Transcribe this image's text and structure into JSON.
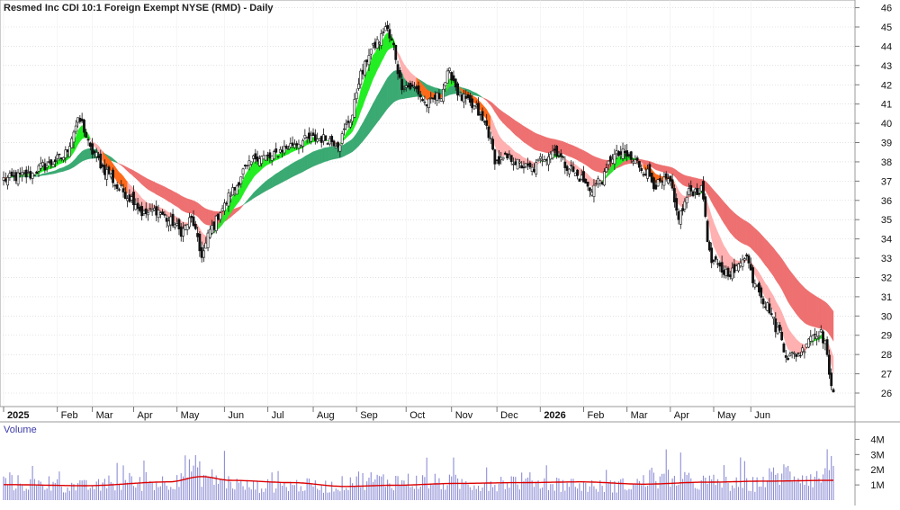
{
  "chart_data": {
    "type": "candlestick",
    "title": "Resmed Inc CDI 10:1 Foreign Exempt NYSE (RMD) - Daily",
    "volume_label": "Volume",
    "ylim": [
      25.3,
      46.4
    ],
    "y_ticks": [
      26,
      27,
      28,
      29,
      30,
      31,
      32,
      33,
      34,
      35,
      36,
      37,
      38,
      39,
      40,
      41,
      42,
      43,
      44,
      45,
      46
    ],
    "x_labels": [
      "2025",
      "Feb",
      "Mar",
      "Apr",
      "May",
      "Jun",
      "Jul",
      "Aug",
      "Sep",
      "Oct",
      "Nov",
      "Dec",
      "2026",
      "Feb",
      "Mar",
      "Apr",
      "May",
      "Jun"
    ],
    "volume_ticks": [
      "4M",
      "3M",
      "2M",
      "1M"
    ],
    "volume_max": 4500000,
    "close_anchors": [
      [
        0,
        37.1
      ],
      [
        12,
        37.3
      ],
      [
        20,
        37.8
      ],
      [
        28,
        38.2
      ],
      [
        37,
        40.1
      ],
      [
        43,
        38.5
      ],
      [
        50,
        37.5
      ],
      [
        56,
        36.6
      ],
      [
        62,
        36.1
      ],
      [
        68,
        35.3
      ],
      [
        74,
        35.5
      ],
      [
        81,
        34.9
      ],
      [
        86,
        34.4
      ],
      [
        91,
        35.0
      ],
      [
        96,
        33.2
      ],
      [
        101,
        34.6
      ],
      [
        106,
        35.6
      ],
      [
        111,
        36.5
      ],
      [
        117,
        37.6
      ],
      [
        123,
        38.3
      ],
      [
        129,
        38.2
      ],
      [
        136,
        38.7
      ],
      [
        142,
        39.0
      ],
      [
        149,
        39.2
      ],
      [
        156,
        39.2
      ],
      [
        162,
        39.0
      ],
      [
        168,
        40.2
      ],
      [
        173,
        42.5
      ],
      [
        178,
        43.8
      ],
      [
        182,
        44.3
      ],
      [
        185,
        45.0
      ],
      [
        188,
        44.2
      ],
      [
        193,
        42.0
      ],
      [
        199,
        41.8
      ],
      [
        205,
        41.0
      ],
      [
        211,
        41.4
      ],
      [
        216,
        42.6
      ],
      [
        222,
        41.3
      ],
      [
        228,
        40.8
      ],
      [
        233,
        40.0
      ],
      [
        239,
        38.0
      ],
      [
        245,
        38.2
      ],
      [
        251,
        37.8
      ],
      [
        256,
        37.6
      ],
      [
        262,
        38.3
      ],
      [
        267,
        38.6
      ],
      [
        273,
        37.8
      ],
      [
        279,
        37.2
      ],
      [
        284,
        36.6
      ],
      [
        290,
        37.1
      ],
      [
        295,
        38.3
      ],
      [
        300,
        38.4
      ],
      [
        306,
        38.0
      ],
      [
        311,
        37.5
      ],
      [
        316,
        36.8
      ],
      [
        322,
        37.0
      ],
      [
        327,
        35.2
      ],
      [
        333,
        36.5
      ],
      [
        338,
        36.5
      ],
      [
        343,
        32.8
      ],
      [
        349,
        32.3
      ],
      [
        354,
        32.3
      ],
      [
        359,
        33.2
      ],
      [
        364,
        31.8
      ],
      [
        370,
        30.5
      ],
      [
        375,
        29.3
      ],
      [
        380,
        27.9
      ],
      [
        386,
        28.1
      ],
      [
        391,
        29.0
      ],
      [
        395,
        29.2
      ],
      [
        398,
        28.7
      ],
      [
        400,
        26.8
      ],
      [
        402,
        26.3
      ]
    ],
    "volume_anchors": [
      [
        0,
        1.3
      ],
      [
        20,
        1.1
      ],
      [
        40,
        1.0
      ],
      [
        60,
        1.2
      ],
      [
        80,
        1.3
      ],
      [
        90,
        2.4
      ],
      [
        100,
        1.6
      ],
      [
        120,
        1.0
      ],
      [
        140,
        1.1
      ],
      [
        160,
        1.0
      ],
      [
        170,
        1.5
      ],
      [
        190,
        1.4
      ],
      [
        210,
        1.3
      ],
      [
        230,
        1.2
      ],
      [
        250,
        1.4
      ],
      [
        270,
        1.2
      ],
      [
        290,
        1.0
      ],
      [
        300,
        1.1
      ],
      [
        320,
        1.5
      ],
      [
        340,
        1.3
      ],
      [
        360,
        1.1
      ],
      [
        380,
        2.0
      ],
      [
        395,
        1.6
      ],
      [
        402,
        3.3
      ]
    ],
    "volume_ma_anchors": [
      [
        0,
        1.02
      ],
      [
        40,
        0.95
      ],
      [
        80,
        1.2
      ],
      [
        96,
        1.55
      ],
      [
        110,
        1.3
      ],
      [
        140,
        1.15
      ],
      [
        165,
        0.9
      ],
      [
        190,
        0.98
      ],
      [
        220,
        1.1
      ],
      [
        250,
        1.15
      ],
      [
        280,
        1.2
      ],
      [
        310,
        1.05
      ],
      [
        340,
        1.18
      ],
      [
        370,
        1.25
      ],
      [
        402,
        1.3
      ]
    ],
    "series": [
      {
        "name": "short-term MA ribbon",
        "type": "ribbon"
      },
      {
        "name": "long-term MA ribbon",
        "type": "ribbon"
      }
    ],
    "colors": {
      "up_candle": "#ffffff",
      "down_candle": "#111111",
      "short_ribbon_up": "#22ee22",
      "short_ribbon_down": "#ffb0b0",
      "long_ribbon_up": "#3aaa72",
      "long_ribbon_down": "#ee7070",
      "cross_bullish": "#33dd33",
      "cross_bearish": "#ff6a1a",
      "volume_bar": "#8c8cd6",
      "volume_ma": "#dd0000",
      "grid": "#cfcfcf",
      "axis_text": "#111111"
    }
  }
}
